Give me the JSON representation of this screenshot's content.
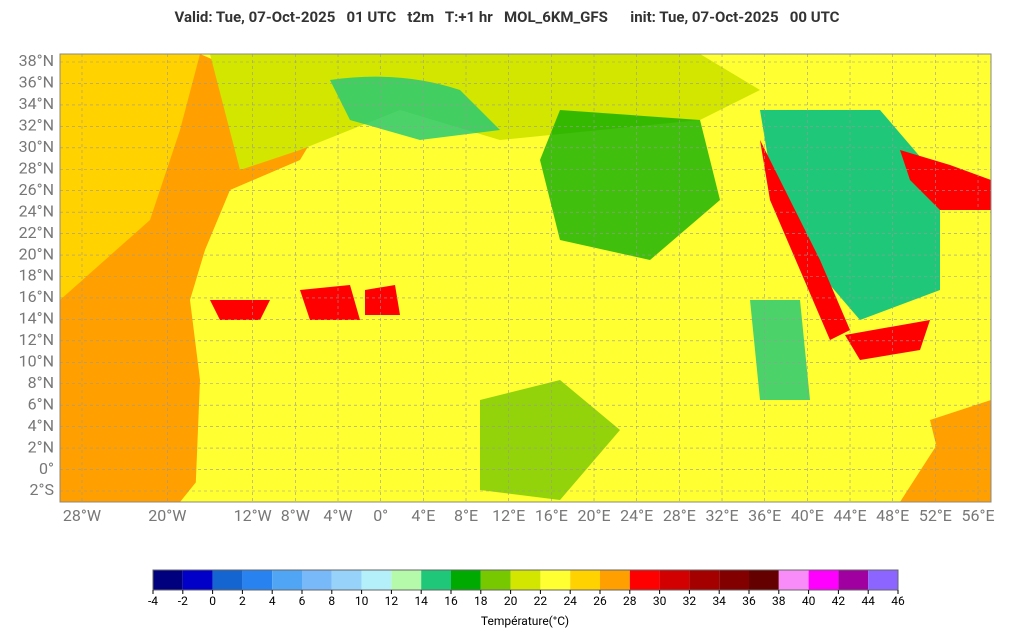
{
  "title": "Valid: Tue, 07-Oct-2025   01 UTC   t2m   T:+1 hr   MOL_6KM_GFS      init: Tue, 07-Oct-2025   00 UTC",
  "lat_ticks": [
    {
      "value": 38,
      "label": "38°N"
    },
    {
      "value": 36,
      "label": "36°N"
    },
    {
      "value": 34,
      "label": "34°N"
    },
    {
      "value": 32,
      "label": "32°N"
    },
    {
      "value": 30,
      "label": "30°N"
    },
    {
      "value": 28,
      "label": "28°N"
    },
    {
      "value": 26,
      "label": "26°N"
    },
    {
      "value": 24,
      "label": "24°N"
    },
    {
      "value": 22,
      "label": "22°N"
    },
    {
      "value": 20,
      "label": "20°N"
    },
    {
      "value": 18,
      "label": "18°N"
    },
    {
      "value": 16,
      "label": "16°N"
    },
    {
      "value": 14,
      "label": "14°N"
    },
    {
      "value": 12,
      "label": "12°N"
    },
    {
      "value": 10,
      "label": "10°N"
    },
    {
      "value": 8,
      "label": "8°N"
    },
    {
      "value": 6,
      "label": "6°N"
    },
    {
      "value": 4,
      "label": "4°N"
    },
    {
      "value": 2,
      "label": "2°N"
    },
    {
      "value": 0,
      "label": "0°"
    },
    {
      "value": -2,
      "label": "2°S"
    }
  ],
  "lon_ticks": [
    {
      "value": -28,
      "label": "28°W"
    },
    {
      "value": -20,
      "label": "20°W"
    },
    {
      "value": -12,
      "label": "12°W"
    },
    {
      "value": -8,
      "label": "8°W"
    },
    {
      "value": -4,
      "label": "4°W"
    },
    {
      "value": 0,
      "label": "0°"
    },
    {
      "value": 4,
      "label": "4°E"
    },
    {
      "value": 8,
      "label": "8°E"
    },
    {
      "value": 12,
      "label": "12°E"
    },
    {
      "value": 16,
      "label": "16°E"
    },
    {
      "value": 20,
      "label": "20°E"
    },
    {
      "value": 24,
      "label": "24°E"
    },
    {
      "value": 28,
      "label": "28°E"
    },
    {
      "value": 32,
      "label": "32°E"
    },
    {
      "value": 36,
      "label": "36°E"
    },
    {
      "value": 40,
      "label": "40°E"
    },
    {
      "value": 44,
      "label": "44°E"
    },
    {
      "value": 48,
      "label": "48°E"
    },
    {
      "value": 52,
      "label": "52°E"
    },
    {
      "value": 56,
      "label": "56°E"
    }
  ],
  "colorbar": {
    "ticks": [
      -4,
      -2,
      0,
      2,
      4,
      6,
      8,
      10,
      12,
      14,
      16,
      18,
      20,
      22,
      24,
      26,
      28,
      30,
      32,
      34,
      36,
      38,
      40,
      42,
      44,
      46
    ],
    "colors": [
      "#00007f",
      "#0000c8",
      "#1464d2",
      "#2882f0",
      "#50a5f5",
      "#78b9fa",
      "#96d2fa",
      "#b4f0fa",
      "#b4faaa",
      "#1ec878",
      "#00aa00",
      "#78c800",
      "#d2e600",
      "#ffff32",
      "#ffd200",
      "#ffa000",
      "#ff0000",
      "#d20000",
      "#a50000",
      "#820000",
      "#640000",
      "#fa8cfa",
      "#ff00ff",
      "#a000a0",
      "#8c64ff"
    ],
    "label": "Température(°C)"
  }
}
